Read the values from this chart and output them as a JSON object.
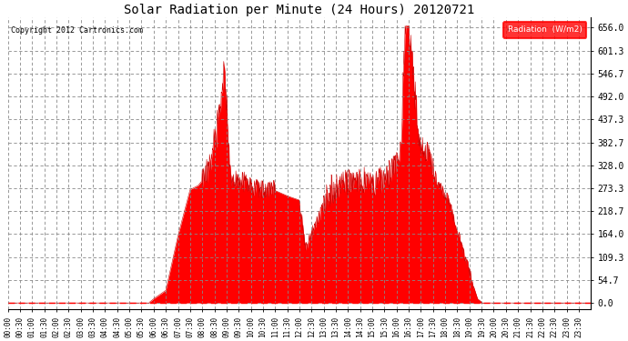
{
  "title": "Solar Radiation per Minute (24 Hours) 20120721",
  "copyright_text": "Copyright 2012 Cartronics.com",
  "legend_label": "Radiation  (W/m2)",
  "fill_color": "#FF0000",
  "line_color": "#CC0000",
  "background_color": "#FFFFFF",
  "grid_color": "#AAAAAA",
  "dashed_line_color": "#FF0000",
  "yticks": [
    0.0,
    54.7,
    109.3,
    164.0,
    218.7,
    273.3,
    328.0,
    382.7,
    437.3,
    492.0,
    546.7,
    601.3,
    656.0
  ],
  "ymax": 680,
  "ymin": -15,
  "total_minutes": 1440,
  "figwidth": 6.9,
  "figheight": 3.75,
  "dpi": 100
}
